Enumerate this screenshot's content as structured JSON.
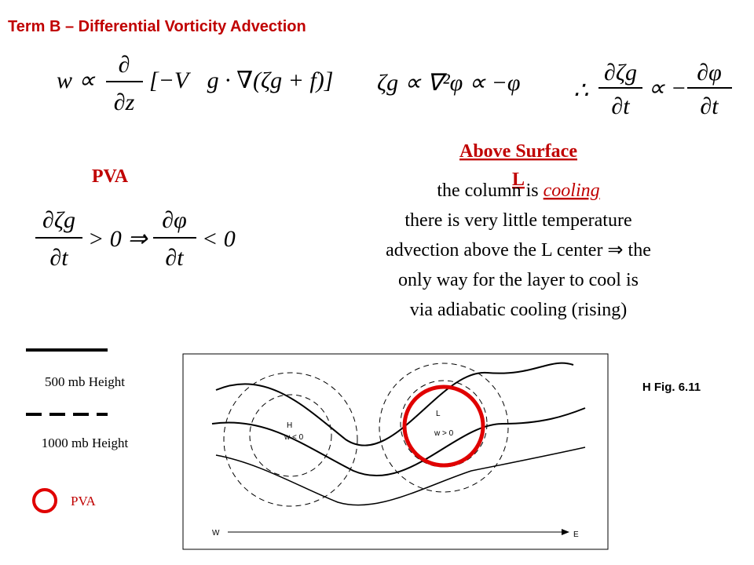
{
  "title": "Term B – Differential Vorticity Advection",
  "eq_omega": {
    "lhs": "w ∝",
    "num": "∂",
    "den": "∂z",
    "rhs": "[−V⃗g ∙ ∇(ζg + f)]"
  },
  "eq_vorticity": "ζg ∝ ∇²φ ∝ −φ",
  "eq_tendency": {
    "therefore": "∴",
    "num1": "∂ζg",
    "den1": "∂t",
    "mid": "∝ −",
    "num2": "∂φ",
    "den2": "∂t"
  },
  "pva_heading": "PVA",
  "eq_pva": {
    "num1": "∂ζg",
    "den1": "∂t",
    "mid": "> 0 ⇒",
    "num2": "∂φ",
    "den2": "∂t",
    "end": "< 0"
  },
  "above_surface": "Above Surface",
  "low_label": "L",
  "explanation": {
    "first_pre": "the column is ",
    "first_em": "cooling",
    "lines": [
      "there is very little temperature",
      "advection above the L center ⇒ the",
      "only way for the layer to cool is",
      "via adiabatic cooling (rising)"
    ]
  },
  "legend": {
    "height_500": "500 mb Height",
    "height_1000": "1000 mb Height",
    "pva": "PVA"
  },
  "figure": {
    "high": "H",
    "high_w": "w < 0",
    "low": "L",
    "low_w": "w > 0",
    "west": "W",
    "east": "E"
  },
  "figure_ref": "H Fig. 6.11"
}
